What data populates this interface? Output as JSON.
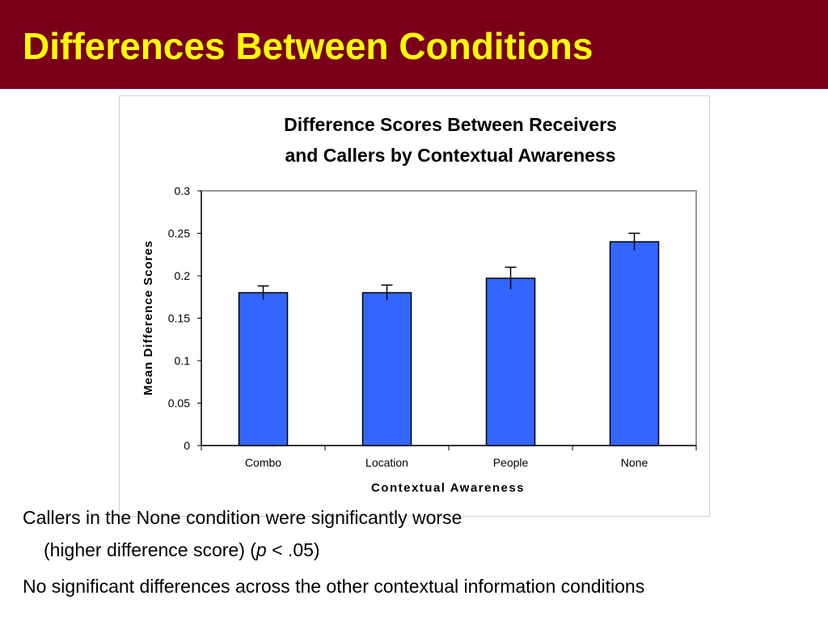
{
  "slide": {
    "title": "Differences Between Conditions",
    "bullets": [
      {
        "line1": "Callers in the None condition were significantly worse",
        "line2_prefix": "(higher difference score) (",
        "line2_italic": "p",
        "line2_suffix": " < .05)"
      },
      {
        "line1": "No significant differences across the other contextual information conditions"
      }
    ]
  },
  "colors": {
    "header_bg": "#7a0019",
    "title_text": "#ffff00",
    "bar_fill": "#3366ff",
    "bar_stroke": "#000000",
    "grid_frame": "#999999"
  },
  "chart_data": {
    "type": "bar",
    "title_lines": [
      "Difference Scores Between Receivers",
      "and Callers by Contextual Awareness"
    ],
    "xlabel": "Contextual Awareness",
    "ylabel": "Mean Difference Scores",
    "categories": [
      "Combo",
      "Location",
      "People",
      "None"
    ],
    "values": [
      0.18,
      0.18,
      0.197,
      0.24
    ],
    "error": [
      0.008,
      0.009,
      0.013,
      0.01
    ],
    "ylim": [
      0,
      0.3
    ],
    "yticks": [
      0,
      0.05,
      0.1,
      0.15,
      0.2,
      0.25,
      0.3
    ],
    "ytick_labels": [
      "0",
      "0.05",
      "0.1",
      "0.15",
      "0.2",
      "0.25",
      "0.3"
    ],
    "grid": false,
    "legend": "none"
  }
}
